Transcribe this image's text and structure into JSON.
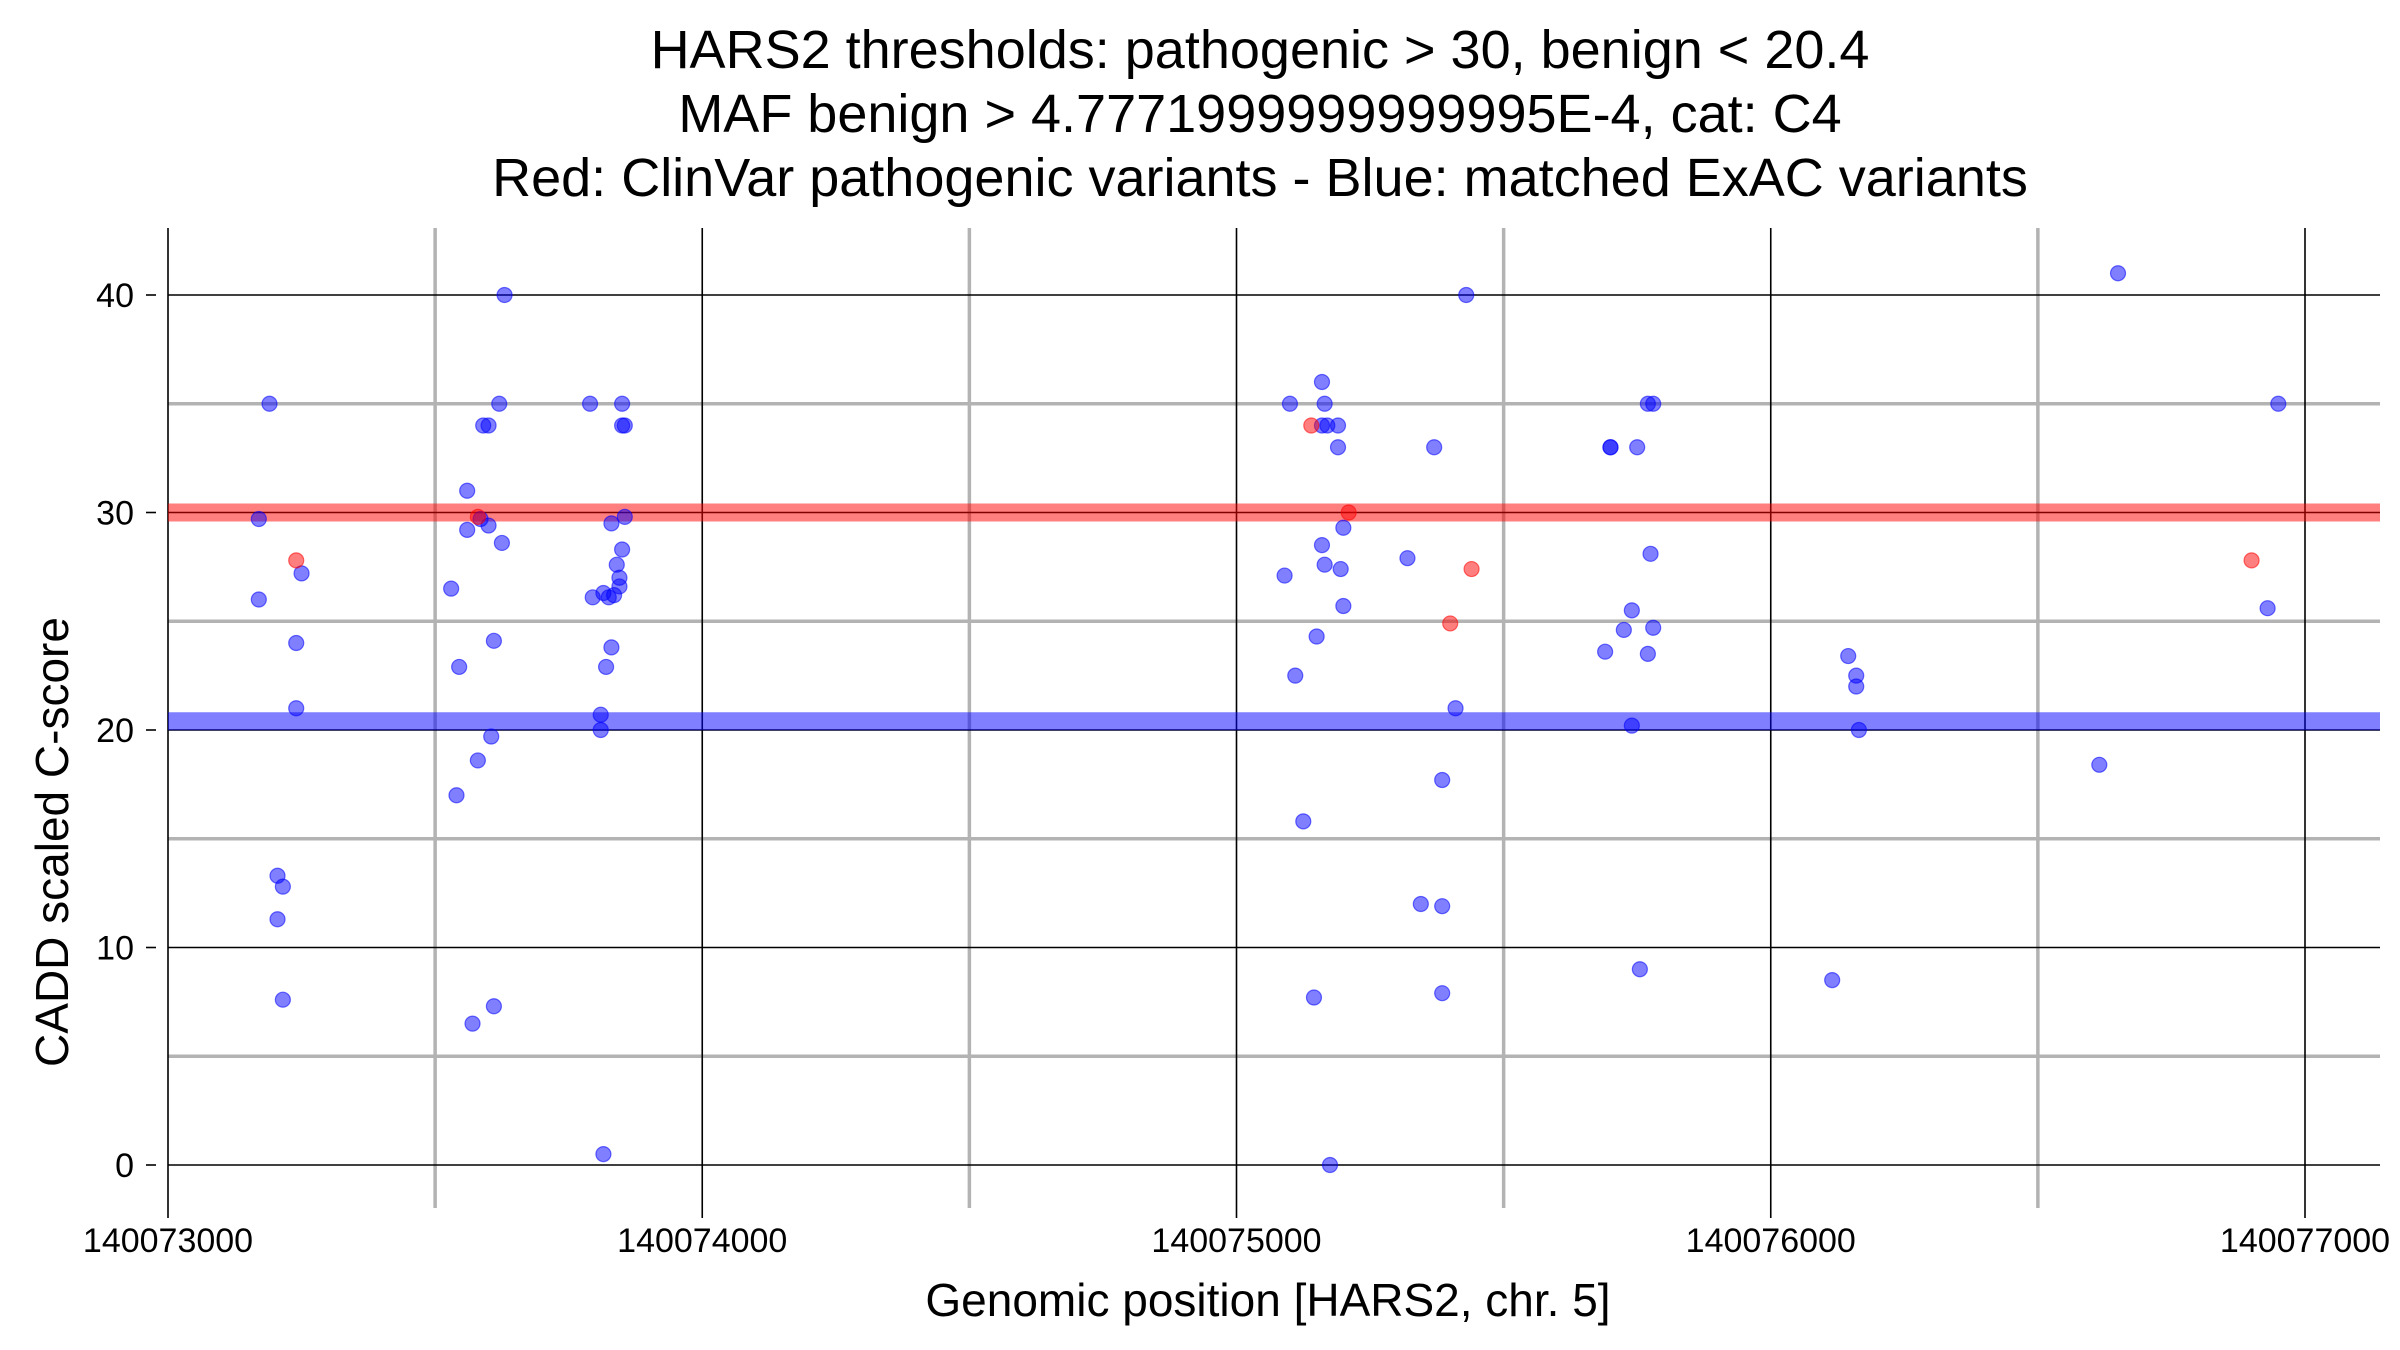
{
  "chart_data": {
    "type": "scatter",
    "title": [
      "HARS2 thresholds: pathogenic > 30, benign < 20.4",
      "MAF benign > 4.7771999999999995E-4, cat: C4",
      "Red: ClinVar pathogenic variants - Blue: matched ExAC variants"
    ],
    "xlabel": "Genomic position [HARS2, chr. 5]",
    "ylabel": "CADD scaled C-score",
    "xlim": [
      140073000,
      140077000
    ],
    "ylim": [
      -2,
      43
    ],
    "x_ticks": [
      140073000,
      140074000,
      140075000,
      140076000,
      140077000
    ],
    "x_tick_labels": [
      "140073000",
      "140074000",
      "140075000",
      "140076000",
      "140077000"
    ],
    "y_ticks": [
      0,
      10,
      20,
      30,
      40
    ],
    "y_tick_labels": [
      "0",
      "10",
      "20",
      "30",
      "40"
    ],
    "grid": true,
    "colors": {
      "pathogenic": "#ff0000",
      "benign": "#0000ff",
      "grid_major": "#000000",
      "grid_minor": "#b3b3b3"
    },
    "thresholds": [
      {
        "name": "pathogenic",
        "value": 30,
        "color": "#ff0000"
      },
      {
        "name": "benign",
        "value": 20.4,
        "color": "#0000ff"
      }
    ],
    "series": [
      {
        "color": "#ff0000",
        "points": [
          {
            "x": 140073240,
            "y": 27.8
          },
          {
            "x": 140073580,
            "y": 29.8
          },
          {
            "x": 140075140,
            "y": 34
          },
          {
            "x": 140075210,
            "y": 30
          },
          {
            "x": 140075400,
            "y": 24.9
          },
          {
            "x": 140075440,
            "y": 27.4
          },
          {
            "x": 140076900,
            "y": 27.8
          }
        ]
      },
      {
        "color": "#0000ff",
        "points": [
          {
            "x": 140073190,
            "y": 35
          },
          {
            "x": 140073170,
            "y": 29.7
          },
          {
            "x": 140073170,
            "y": 26
          },
          {
            "x": 140073250,
            "y": 27.2
          },
          {
            "x": 140073240,
            "y": 24
          },
          {
            "x": 140073240,
            "y": 21
          },
          {
            "x": 140073205,
            "y": 13.3
          },
          {
            "x": 140073215,
            "y": 12.8
          },
          {
            "x": 140073205,
            "y": 11.3
          },
          {
            "x": 140073215,
            "y": 7.6
          },
          {
            "x": 140073630,
            "y": 40
          },
          {
            "x": 140073620,
            "y": 35
          },
          {
            "x": 140073590,
            "y": 34
          },
          {
            "x": 140073600,
            "y": 34
          },
          {
            "x": 140073560,
            "y": 31
          },
          {
            "x": 140073585,
            "y": 29.7
          },
          {
            "x": 140073560,
            "y": 29.2
          },
          {
            "x": 140073600,
            "y": 29.4
          },
          {
            "x": 140073625,
            "y": 28.6
          },
          {
            "x": 140073530,
            "y": 26.5
          },
          {
            "x": 140073610,
            "y": 24.1
          },
          {
            "x": 140073545,
            "y": 22.9
          },
          {
            "x": 140073605,
            "y": 19.7
          },
          {
            "x": 140073580,
            "y": 18.6
          },
          {
            "x": 140073540,
            "y": 17
          },
          {
            "x": 140073570,
            "y": 6.5
          },
          {
            "x": 140073610,
            "y": 7.3
          },
          {
            "x": 140073790,
            "y": 35
          },
          {
            "x": 140073850,
            "y": 35
          },
          {
            "x": 140073850,
            "y": 34
          },
          {
            "x": 140073855,
            "y": 34
          },
          {
            "x": 140073855,
            "y": 29.8
          },
          {
            "x": 140073830,
            "y": 29.5
          },
          {
            "x": 140073850,
            "y": 28.3
          },
          {
            "x": 140073840,
            "y": 27.6
          },
          {
            "x": 140073845,
            "y": 27
          },
          {
            "x": 140073845,
            "y": 26.6
          },
          {
            "x": 140073795,
            "y": 26.1
          },
          {
            "x": 140073815,
            "y": 26.3
          },
          {
            "x": 140073825,
            "y": 26.1
          },
          {
            "x": 140073835,
            "y": 26.2
          },
          {
            "x": 140073830,
            "y": 23.8
          },
          {
            "x": 140073820,
            "y": 22.9
          },
          {
            "x": 140073810,
            "y": 20.7
          },
          {
            "x": 140073810,
            "y": 20
          },
          {
            "x": 140073815,
            "y": 0.5
          },
          {
            "x": 140075100,
            "y": 35
          },
          {
            "x": 140075160,
            "y": 36
          },
          {
            "x": 140075165,
            "y": 35
          },
          {
            "x": 140075160,
            "y": 34
          },
          {
            "x": 140075170,
            "y": 34
          },
          {
            "x": 140075190,
            "y": 34
          },
          {
            "x": 140075190,
            "y": 33
          },
          {
            "x": 140075200,
            "y": 29.3
          },
          {
            "x": 140075160,
            "y": 28.5
          },
          {
            "x": 140075165,
            "y": 27.6
          },
          {
            "x": 140075195,
            "y": 27.4
          },
          {
            "x": 140075090,
            "y": 27.1
          },
          {
            "x": 140075200,
            "y": 25.7
          },
          {
            "x": 140075150,
            "y": 24.3
          },
          {
            "x": 140075110,
            "y": 22.5
          },
          {
            "x": 140075125,
            "y": 15.8
          },
          {
            "x": 140075145,
            "y": 7.7
          },
          {
            "x": 140075175,
            "y": 0
          },
          {
            "x": 140075430,
            "y": 40
          },
          {
            "x": 140075370,
            "y": 33
          },
          {
            "x": 140075320,
            "y": 27.9
          },
          {
            "x": 140075410,
            "y": 21
          },
          {
            "x": 140075385,
            "y": 17.7
          },
          {
            "x": 140075345,
            "y": 12
          },
          {
            "x": 140075385,
            "y": 11.9
          },
          {
            "x": 140075385,
            "y": 7.9
          },
          {
            "x": 140075700,
            "y": 33
          },
          {
            "x": 140075700,
            "y": 33
          },
          {
            "x": 140075750,
            "y": 33
          },
          {
            "x": 140075770,
            "y": 35
          },
          {
            "x": 140075780,
            "y": 35
          },
          {
            "x": 140075775,
            "y": 28.1
          },
          {
            "x": 140075740,
            "y": 25.5
          },
          {
            "x": 140075780,
            "y": 24.7
          },
          {
            "x": 140075725,
            "y": 24.6
          },
          {
            "x": 140075690,
            "y": 23.6
          },
          {
            "x": 140075770,
            "y": 23.5
          },
          {
            "x": 140075740,
            "y": 20.2
          },
          {
            "x": 140075755,
            "y": 9
          },
          {
            "x": 140076145,
            "y": 23.4
          },
          {
            "x": 140076160,
            "y": 22.5
          },
          {
            "x": 140076160,
            "y": 22
          },
          {
            "x": 140076165,
            "y": 20
          },
          {
            "x": 140076115,
            "y": 8.5
          },
          {
            "x": 140076650,
            "y": 41
          },
          {
            "x": 140076950,
            "y": 35
          },
          {
            "x": 140076930,
            "y": 25.6
          },
          {
            "x": 140076615,
            "y": 18.4
          }
        ]
      }
    ]
  }
}
